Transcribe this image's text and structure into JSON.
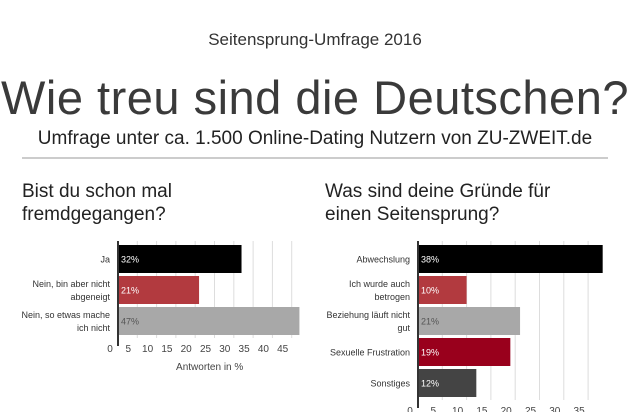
{
  "header": {
    "supertitle": "Seitensprung-Umfrage 2016",
    "title": "Wie treu sind die Deutschen?",
    "subtitle": "Umfrage unter ca. 1.500 Online-Dating Nutzern von ZU-ZWEIT.de"
  },
  "chart_data": [
    {
      "type": "bar",
      "title": "Bist du schon mal fremdgegangen?",
      "title_lines": [
        "Bist du schon mal",
        "fremdgegangen?"
      ],
      "categories": [
        [
          "Ja"
        ],
        [
          "Nein, bin aber nicht",
          "abgeneigt"
        ],
        [
          "Nein, so etwas mache",
          "ich nicht"
        ]
      ],
      "values": [
        32,
        21,
        47
      ],
      "data_labels": [
        "32%",
        "21%",
        "47%"
      ],
      "colors": [
        "#000000",
        "#b23a3f",
        "#a8a8a8"
      ],
      "label_colors": [
        "#ffffff",
        "#ffffff",
        "#555555"
      ],
      "xlabel": "Antworten in %",
      "xticks": [
        0,
        5,
        10,
        15,
        20,
        25,
        30,
        35,
        40,
        45
      ],
      "xlim": [
        0,
        47.5
      ]
    },
    {
      "type": "bar",
      "title": "Was sind deine Gründe für einen Seitensprung?",
      "title_lines": [
        "Was sind deine Gründe für",
        "einen Seitensprung?"
      ],
      "categories": [
        [
          "Abwechslung"
        ],
        [
          "Ich wurde auch",
          "betrogen"
        ],
        [
          "Beziehung läuft nicht",
          "gut"
        ],
        [
          "Sexuelle Frustration"
        ],
        [
          "Sonstiges"
        ]
      ],
      "values": [
        38,
        10,
        21,
        19,
        12
      ],
      "data_labels": [
        "38%",
        "10%",
        "21%",
        "19%",
        "12%"
      ],
      "colors": [
        "#000000",
        "#b23a3f",
        "#a8a8a8",
        "#99001c",
        "#444444"
      ],
      "label_colors": [
        "#ffffff",
        "#ffffff",
        "#555555",
        "#ffffff",
        "#ffffff"
      ],
      "xlabel": "",
      "xticks": [
        0,
        5,
        10,
        15,
        20,
        25,
        30,
        35
      ],
      "xlim": [
        0,
        38.5
      ]
    }
  ]
}
